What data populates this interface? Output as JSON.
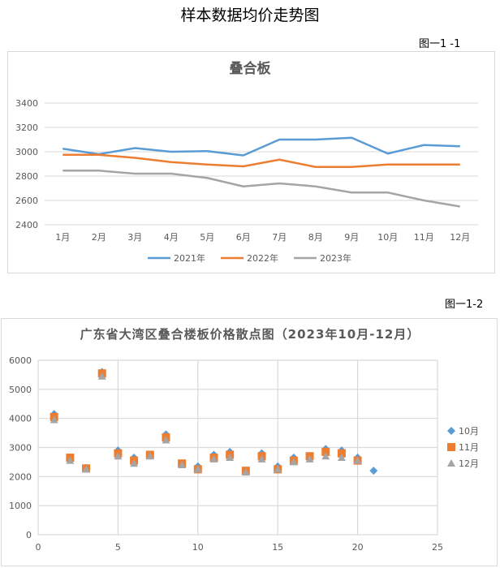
{
  "page_title": "样本数据均价走势图",
  "figure_labels": [
    "图一1 -1",
    "图一1-2"
  ],
  "chart_data": [
    {
      "type": "line",
      "title": "叠合板",
      "categories": [
        "1月",
        "2月",
        "3月",
        "4月",
        "5月",
        "6月",
        "7月",
        "8月",
        "9月",
        "10月",
        "11月",
        "12月"
      ],
      "ylim": [
        2400,
        3400
      ],
      "yticks": [
        2400,
        2600,
        2800,
        3000,
        3200,
        3400
      ],
      "grid": true,
      "legend_position": "bottom",
      "series": [
        {
          "name": "2021年",
          "color": "#5B9BD5",
          "values": [
            3025,
            2980,
            3030,
            3000,
            3005,
            2970,
            3100,
            3100,
            3115,
            2985,
            3055,
            3045
          ]
        },
        {
          "name": "2022年",
          "color": "#ED7D31",
          "values": [
            2975,
            2975,
            2950,
            2915,
            2895,
            2880,
            2935,
            2875,
            2875,
            2895,
            2895,
            2895
          ]
        },
        {
          "name": "2023年",
          "color": "#A5A5A5",
          "values": [
            2845,
            2845,
            2820,
            2820,
            2785,
            2715,
            2740,
            2715,
            2665,
            2665,
            2600,
            2550
          ]
        }
      ]
    },
    {
      "type": "scatter",
      "title": "广东省大湾区叠合楼板价格散点图（2023年10月-12月）",
      "xlim": [
        0,
        25
      ],
      "ylim": [
        0,
        6000
      ],
      "xticks": [
        0,
        5,
        10,
        15,
        20,
        25
      ],
      "yticks": [
        0,
        1000,
        2000,
        3000,
        4000,
        5000,
        6000
      ],
      "grid": true,
      "legend_position": "right",
      "series": [
        {
          "name": "10月",
          "color": "#5B9BD5",
          "marker": "diamond",
          "x": [
            1,
            2,
            3,
            4,
            5,
            6,
            7,
            8,
            9,
            10,
            11,
            12,
            13,
            14,
            15,
            16,
            17,
            18,
            19,
            20,
            21
          ],
          "y": [
            4150,
            2600,
            2300,
            5600,
            2900,
            2650,
            2750,
            3450,
            2450,
            2350,
            2750,
            2850,
            2200,
            2800,
            2350,
            2650,
            2700,
            2950,
            2900,
            2650,
            2200
          ]
        },
        {
          "name": "11月",
          "color": "#ED7D31",
          "marker": "square",
          "x": [
            1,
            2,
            3,
            4,
            5,
            6,
            7,
            8,
            9,
            10,
            11,
            12,
            13,
            14,
            15,
            16,
            17,
            18,
            19,
            20
          ],
          "y": [
            4050,
            2650,
            2280,
            5550,
            2800,
            2550,
            2750,
            3350,
            2450,
            2250,
            2650,
            2750,
            2200,
            2700,
            2250,
            2550,
            2700,
            2850,
            2800,
            2550
          ]
        },
        {
          "name": "12月",
          "color": "#A5A5A5",
          "marker": "triangle",
          "x": [
            1,
            2,
            3,
            4,
            5,
            6,
            7,
            8,
            9,
            10,
            11,
            12,
            13,
            14,
            15,
            16,
            17,
            18,
            19,
            20
          ],
          "y": [
            3950,
            2550,
            2250,
            5450,
            2700,
            2450,
            2700,
            3250,
            2400,
            2250,
            2600,
            2650,
            2150,
            2600,
            2250,
            2500,
            2600,
            2700,
            2650,
            2550
          ]
        }
      ]
    }
  ]
}
